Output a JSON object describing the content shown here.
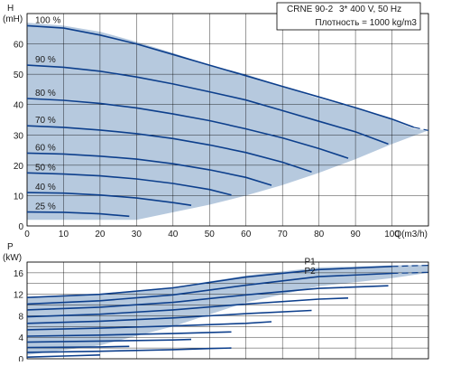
{
  "info": {
    "model": "CRNE 90-2",
    "supply": "3* 400 V, 50 Hz",
    "density": "Плотность = 1000 kg/m3"
  },
  "colors": {
    "envelope": "#b6c9de",
    "curve": "#0d3f8c",
    "grid": "#000000"
  },
  "chart_data": [
    {
      "type": "line",
      "ylabel_top": "H",
      "ylabel_unit": "(mH)",
      "xlabel": "Q(m3/h)",
      "xlim": [
        0,
        110
      ],
      "ylim": [
        0,
        70
      ],
      "x_ticks": [
        "0",
        "10",
        "20",
        "30",
        "40",
        "50",
        "60",
        "70",
        "80",
        "90",
        "100"
      ],
      "y_ticks": [
        "0",
        "10",
        "20",
        "30",
        "40",
        "50",
        "60"
      ],
      "grid": true,
      "envelope": [
        [
          0,
          67
        ],
        [
          10,
          66
        ],
        [
          20,
          64
        ],
        [
          30,
          60.7
        ],
        [
          40,
          57
        ],
        [
          50,
          53
        ],
        [
          60,
          50
        ],
        [
          70,
          46
        ],
        [
          80,
          42
        ],
        [
          90,
          39
        ],
        [
          100,
          35
        ],
        [
          106,
          32
        ],
        [
          110,
          31.5
        ],
        [
          100,
          27
        ],
        [
          90,
          22
        ],
        [
          80,
          17.5
        ],
        [
          70,
          13.5
        ],
        [
          60,
          10
        ],
        [
          50,
          7
        ],
        [
          40,
          4.5
        ],
        [
          30,
          2
        ],
        [
          0,
          2
        ]
      ],
      "series": [
        {
          "name": "100 %",
          "x": [
            0,
            10,
            20,
            30,
            40,
            50,
            60,
            70,
            80,
            90,
            100,
            106
          ],
          "y": [
            66,
            65.2,
            62.9,
            60,
            56.5,
            53,
            49.5,
            46,
            42.5,
            39,
            35.2,
            32.5
          ],
          "ext_x": [
            106,
            110
          ],
          "ext_y": [
            32.5,
            31.5
          ]
        },
        {
          "name": "90 %",
          "x": [
            0,
            10,
            20,
            30,
            40,
            50,
            60,
            70,
            80,
            90,
            99
          ],
          "y": [
            53,
            52.3,
            51,
            49.1,
            46.8,
            44.2,
            41.5,
            38,
            34.5,
            31,
            27
          ]
        },
        {
          "name": "80 %",
          "x": [
            0,
            10,
            20,
            30,
            40,
            50,
            60,
            70,
            80,
            88
          ],
          "y": [
            42,
            41.4,
            40.4,
            38.9,
            36.9,
            34.7,
            32,
            29,
            25.5,
            22.3
          ]
        },
        {
          "name": "70 %",
          "x": [
            0,
            10,
            20,
            30,
            40,
            50,
            60,
            70,
            78
          ],
          "y": [
            33,
            32.5,
            31.6,
            30.4,
            28.8,
            26.7,
            24.2,
            21,
            17.8
          ]
        },
        {
          "name": "60 %",
          "x": [
            0,
            10,
            20,
            30,
            40,
            50,
            60,
            67
          ],
          "y": [
            24,
            23.7,
            23,
            22,
            20.5,
            18.5,
            16,
            13.4
          ]
        },
        {
          "name": "50 %",
          "x": [
            0,
            10,
            20,
            30,
            40,
            50,
            56
          ],
          "y": [
            17.5,
            17.1,
            16.5,
            15.5,
            14,
            12,
            10.2
          ]
        },
        {
          "name": "40 %",
          "x": [
            0,
            10,
            20,
            30,
            40,
            45
          ],
          "y": [
            11,
            10.8,
            10.2,
            9.2,
            7.7,
            6.8
          ]
        },
        {
          "name": "25 %",
          "x": [
            0,
            10,
            20,
            28
          ],
          "y": [
            4.6,
            4.5,
            4,
            3.2
          ]
        }
      ]
    },
    {
      "type": "line",
      "ylabel_top": "P",
      "ylabel_unit": "(kW)",
      "xlim": [
        0,
        110
      ],
      "ylim": [
        0,
        18
      ],
      "y_ticks": [
        "0",
        "4",
        "8",
        "12",
        "16"
      ],
      "grid": true,
      "envelope": [
        [
          0,
          11.5
        ],
        [
          20,
          12.1
        ],
        [
          40,
          13.3
        ],
        [
          60,
          15.5
        ],
        [
          80,
          17
        ],
        [
          100,
          17.4
        ],
        [
          110,
          17.5
        ],
        [
          110,
          16
        ],
        [
          100,
          15
        ],
        [
          80,
          13.5
        ],
        [
          60,
          10.5
        ],
        [
          40,
          6
        ],
        [
          20,
          2.5
        ],
        [
          0,
          0.7
        ]
      ],
      "series": [
        {
          "name": "P1",
          "x": [
            0,
            20,
            40,
            60,
            80,
            100
          ],
          "y": [
            11.4,
            12,
            13.2,
            15.2,
            16.6,
            17.2
          ],
          "ext_x": [
            100,
            110
          ],
          "ext_y": [
            17.2,
            17.4
          ]
        },
        {
          "name": "P2",
          "x": [
            0,
            20,
            40,
            60,
            80,
            100
          ],
          "y": [
            10.2,
            10.8,
            11.9,
            13.7,
            15.3,
            15.9
          ],
          "ext_x": [
            100,
            110
          ],
          "ext_y": [
            15.9,
            16.1
          ]
        },
        {
          "name": "",
          "x": [
            0,
            20,
            40,
            60,
            80,
            99
          ],
          "y": [
            9.1,
            9.6,
            10.5,
            11.9,
            13.1,
            13.6
          ]
        },
        {
          "name": "",
          "x": [
            0,
            20,
            40,
            60,
            80,
            88
          ],
          "y": [
            7.8,
            8.3,
            9.1,
            10.2,
            11.1,
            11.3
          ]
        },
        {
          "name": "",
          "x": [
            0,
            20,
            40,
            60,
            78
          ],
          "y": [
            6.6,
            7,
            7.6,
            8.4,
            9
          ]
        },
        {
          "name": "",
          "x": [
            0,
            20,
            40,
            60,
            67
          ],
          "y": [
            5.4,
            5.7,
            6.1,
            6.6,
            6.9
          ]
        },
        {
          "name": "",
          "x": [
            0,
            20,
            40,
            56
          ],
          "y": [
            4.2,
            4.4,
            4.7,
            5
          ]
        },
        {
          "name": "",
          "x": [
            0,
            20,
            40,
            45
          ],
          "y": [
            3.1,
            3.3,
            3.5,
            3.6
          ]
        },
        {
          "name": "",
          "x": [
            0,
            20,
            28
          ],
          "y": [
            2.1,
            2.2,
            2.3
          ]
        },
        {
          "name": "",
          "x": [
            0,
            20,
            40,
            50,
            56
          ],
          "y": [
            1.2,
            1.4,
            1.7,
            1.9,
            2
          ]
        },
        {
          "name": "",
          "x": [
            0,
            10,
            20
          ],
          "y": [
            0.3,
            0.5,
            0.7
          ]
        }
      ]
    }
  ]
}
